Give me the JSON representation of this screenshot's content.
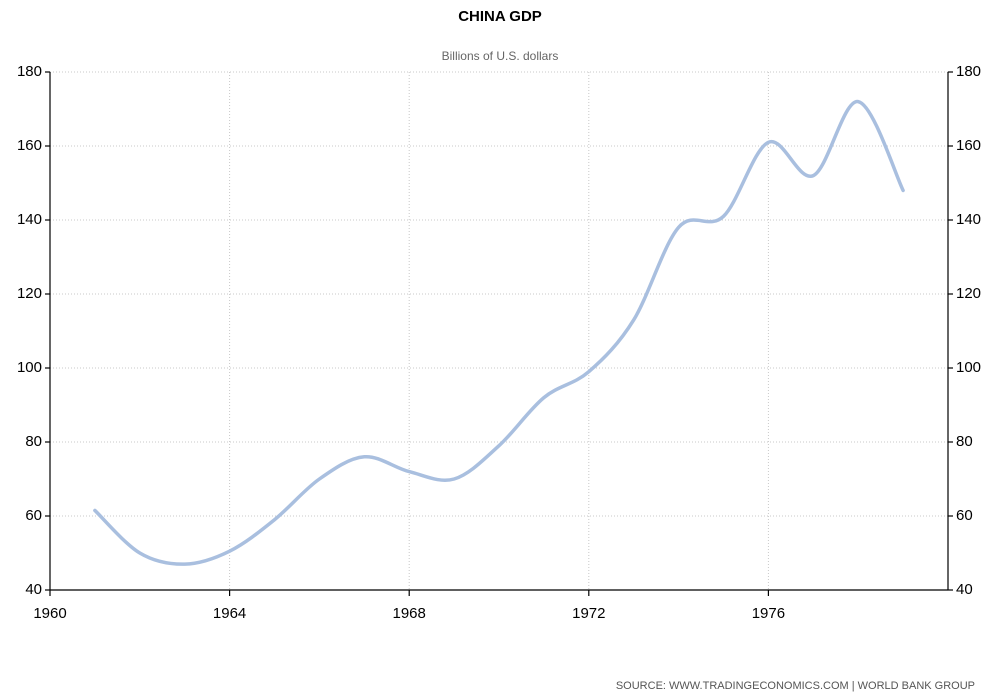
{
  "chart_data": {
    "type": "line",
    "title": "CHINA GDP",
    "subtitle": "Billions of U.S. dollars",
    "source": "SOURCE:  WWW.TRADINGECONOMICS.COM  |  WORLD  BANK  GROUP",
    "x": [
      1961,
      1962,
      1963,
      1964,
      1965,
      1966,
      1967,
      1968,
      1969,
      1970,
      1971,
      1972,
      1973,
      1974,
      1975,
      1976,
      1977,
      1978,
      1979
    ],
    "series": [
      {
        "name": "China GDP",
        "color": "#a9bfdf",
        "values": [
          61.5,
          50,
          47,
          50.5,
          59,
          70,
          76,
          72,
          70,
          79,
          92,
          99,
          113,
          138,
          141,
          161,
          152,
          172,
          148
        ]
      }
    ],
    "xlim": [
      1960,
      1980
    ],
    "xticks": [
      1960,
      1964,
      1968,
      1972,
      1976
    ],
    "ylim": [
      40,
      180
    ],
    "yticks": [
      40,
      60,
      80,
      100,
      120,
      140,
      160,
      180
    ],
    "grid": true
  }
}
